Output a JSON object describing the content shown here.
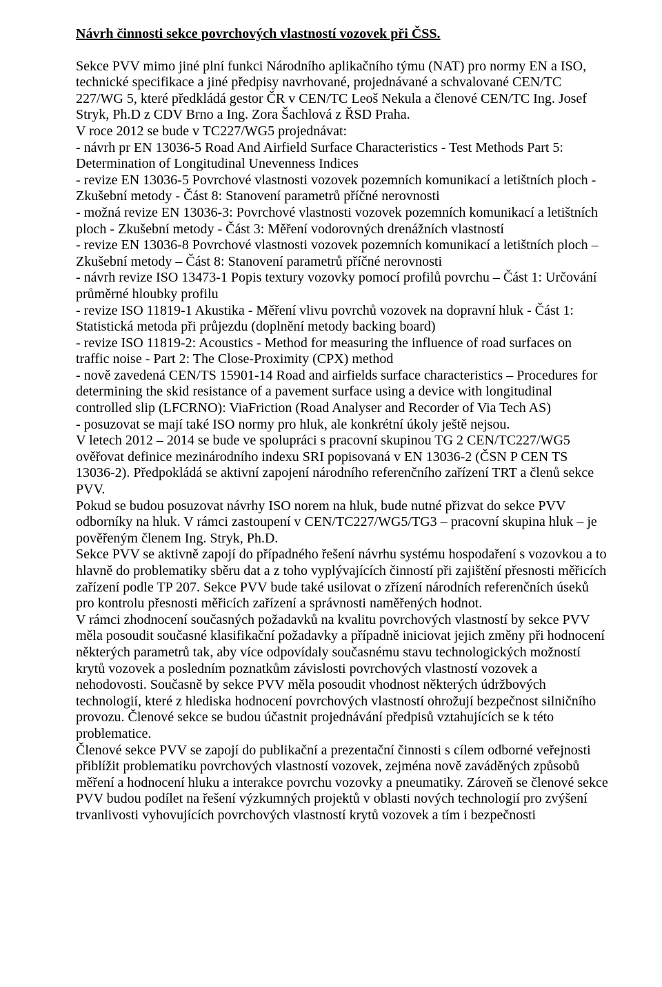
{
  "title": "Návrh činnosti sekce povrchových vlastností vozovek při ČSS.",
  "body": "Sekce PVV mimo jiné plní funkci Národního aplikačního týmu (NAT) pro normy EN a ISO, technické specifikace a jiné předpisy navrhované, projednávané a schvalované CEN/TC 227/WG 5, které předkládá gestor ČR v CEN/TC Leoš Nekula a členové CEN/TC Ing. Josef Stryk, Ph.D z CDV Brno a Ing. Zora Šachlová z ŘSD Praha.\nV roce 2012 se bude v TC227/WG5 projednávat:\n- návrh pr EN 13036-5 Road And Airfield Surface Characteristics - Test Methods  Part 5: Determination of Longitudinal Unevenness Indices\n- revize EN 13036-5 Povrchové vlastnosti vozovek pozemních komunikací a letištních ploch - Zkušební metody - Část 8: Stanovení parametrů příčné nerovnosti\n- možná revize EN 13036-3: Povrchové vlastnosti vozovek pozemních komunikací a letištních ploch - Zkušební metody - Část 3: Měření vodorovných drenážních vlastností\n- revize EN 13036-8 Povrchové vlastnosti vozovek pozemních komunikací a letištních ploch – Zkušební metody – Část 8: Stanovení parametrů příčné nerovnosti\n- návrh revize ISO 13473-1 Popis textury vozovky pomocí profilů povrchu – Část 1: Určování průměrné hloubky profilu\n- revize ISO 11819-1 Akustika - Měření vlivu povrchů vozovek na dopravní hluk - Část 1: Statistická metoda při průjezdu (doplnění metody backing board)\n- revize ISO 11819-2: Acoustics - Method for measuring the influence of road surfaces on traffic noise - Part 2: The Close-Proximity (CPX) method\n- nově zavedená CEN/TS 15901-14 Road and airfields surface characteristics – Procedures for determining the skid resistance of a pavement surface using a device with longitudinal controlled slip (LFCRNO):  ViaFriction (Road Analyser and Recorder of Via Tech AS)\n- posuzovat se mají také ISO normy pro hluk, ale konkrétní úkoly ještě nejsou.\nV letech 2012 – 2014 se bude ve spolupráci s pracovní skupinou TG 2 CEN/TC227/WG5 ověřovat definice mezinárodního indexu SRI popisovaná v EN 13036-2 (ČSN P CEN TS 13036-2). Předpokládá se aktivní zapojení národního referenčního zařízení TRT a členů sekce PVV.\nPokud se budou posuzovat návrhy ISO norem na hluk, bude nutné přizvat do sekce PVV odborníky na hluk. V rámci zastoupení v CEN/TC227/WG5/TG3 – pracovní skupina hluk – je pověřeným členem Ing. Stryk, Ph.D.\nSekce PVV se aktivně zapojí do případného řešení návrhu systému hospodaření s vozovkou a to hlavně do problematiky sběru dat a z toho vyplývajících činností při zajištění přesnosti měřicích zařízení podle TP 207. Sekce PVV bude také usilovat o zřízení národních referenčních úseků pro kontrolu přesnosti měřicích zařízení a správnosti naměřených hodnot.\nV rámci zhodnocení současných požadavků na kvalitu povrchových vlastností by sekce PVV měla posoudit současné klasifikační požadavky a případně iniciovat jejich změny při hodnocení některých parametrů tak, aby více odpovídaly současnému stavu technologických možností krytů vozovek a posledním poznatkům závislosti povrchových vlastností vozovek a nehodovosti. Současně by sekce PVV měla posoudit vhodnost některých údržbových technologií, které z hlediska hodnocení povrchových vlastností ohrožují bezpečnost silničního provozu. Členové sekce se budou účastnit projednávání předpisů vztahujících se k této problematice.\nČlenové sekce PVV se zapojí do publikační a prezentační činnosti s cílem odborné veřejnosti přiblížit problematiku povrchových vlastností vozovek, zejména nově zaváděných způsobů měření a hodnocení hluku a interakce povrchu vozovky a pneumatiky. Zároveň se členové sekce PVV budou podílet na řešení výzkumných projektů v oblasti nových technologií pro zvýšení trvanlivosti vyhovujících povrchových vlastností krytů vozovek a tím i bezpečnosti"
}
